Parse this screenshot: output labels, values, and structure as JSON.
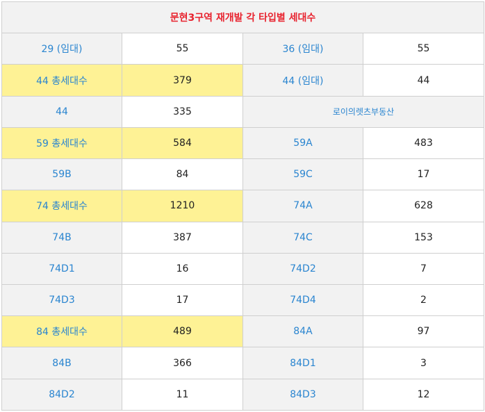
{
  "title": "문현3구역 재개발 각 타입별 세대수",
  "rows": [
    [
      {
        "t": "29 (임대)"
      },
      {
        "t": "55"
      },
      {
        "t": "36 (임대)"
      },
      {
        "t": "55"
      }
    ],
    [
      {
        "t": "44 총세대수",
        "hl": true
      },
      {
        "t": "379",
        "hl": true
      },
      {
        "t": "44 (임대)"
      },
      {
        "t": "44"
      }
    ],
    [
      {
        "t": "44"
      },
      {
        "t": "335"
      },
      {
        "t": "로이의렛츠부동산",
        "span": 2,
        "small": true
      }
    ],
    [
      {
        "t": "59  총세대수",
        "hl": true
      },
      {
        "t": "584",
        "hl": true
      },
      {
        "t": "59A"
      },
      {
        "t": "483"
      }
    ],
    [
      {
        "t": "59B"
      },
      {
        "t": "84"
      },
      {
        "t": "59C"
      },
      {
        "t": "17"
      }
    ],
    [
      {
        "t": "74 총세대수",
        "hl": true
      },
      {
        "t": "1210",
        "hl": true
      },
      {
        "t": "74A"
      },
      {
        "t": "628"
      }
    ],
    [
      {
        "t": "74B"
      },
      {
        "t": "387"
      },
      {
        "t": "74C"
      },
      {
        "t": "153"
      }
    ],
    [
      {
        "t": "74D1"
      },
      {
        "t": "16"
      },
      {
        "t": "74D2"
      },
      {
        "t": "7"
      }
    ],
    [
      {
        "t": "74D3"
      },
      {
        "t": "17"
      },
      {
        "t": "74D4"
      },
      {
        "t": "2"
      }
    ],
    [
      {
        "t": "84 총세대수",
        "hl": true
      },
      {
        "t": "489",
        "hl": true
      },
      {
        "t": "84A"
      },
      {
        "t": "97"
      }
    ],
    [
      {
        "t": "84B"
      },
      {
        "t": "366"
      },
      {
        "t": "84D1"
      },
      {
        "t": "3"
      }
    ],
    [
      {
        "t": "84D2"
      },
      {
        "t": "11"
      },
      {
        "t": "84D3"
      },
      {
        "t": "12"
      }
    ]
  ]
}
